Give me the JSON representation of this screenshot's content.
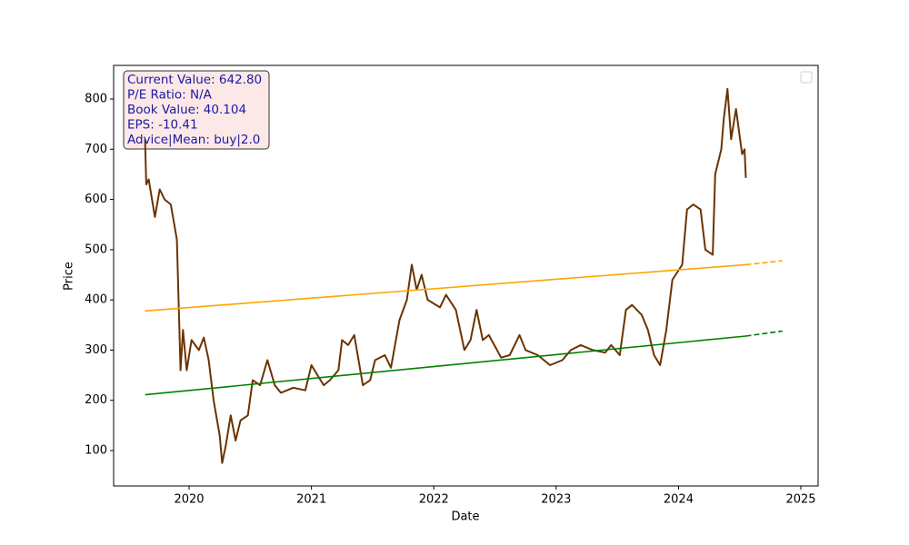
{
  "chart_data": {
    "type": "line",
    "xlabel": "Date",
    "ylabel": "Price",
    "xlim": [
      2019.383,
      2025.141
    ],
    "xticks": [
      2020,
      2021,
      2022,
      2023,
      2024,
      2025
    ],
    "ylim": [
      29.5,
      866.9
    ],
    "yticks": [
      100,
      200,
      300,
      400,
      500,
      600,
      700,
      800
    ],
    "info_box": [
      "Current Value: 642.80",
      "P/E Ratio: N/A",
      "Book Value: 40.104",
      "EPS: -10.41",
      "Advice|Mean: buy|2.0"
    ],
    "series": [
      {
        "color": "#6b3300",
        "dashed": false,
        "x": [
          2019.64,
          2019.65,
          2019.67,
          2019.72,
          2019.76,
          2019.8,
          2019.85,
          2019.9,
          2019.93,
          2019.95,
          2019.98,
          2020.02,
          2020.08,
          2020.12,
          2020.16,
          2020.2,
          2020.25,
          2020.27,
          2020.3,
          2020.34,
          2020.38,
          2020.42,
          2020.48,
          2020.52,
          2020.58,
          2020.64,
          2020.7,
          2020.75,
          2020.85,
          2020.95,
          2021.0,
          2021.1,
          2021.15,
          2021.22,
          2021.25,
          2021.3,
          2021.35,
          2021.42,
          2021.48,
          2021.52,
          2021.6,
          2021.65,
          2021.72,
          2021.78,
          2021.82,
          2021.86,
          2021.9,
          2021.95,
          2022.05,
          2022.1,
          2022.18,
          2022.25,
          2022.3,
          2022.35,
          2022.4,
          2022.45,
          2022.55,
          2022.62,
          2022.7,
          2022.75,
          2022.85,
          2022.95,
          2023.05,
          2023.12,
          2023.2,
          2023.3,
          2023.4,
          2023.45,
          2023.52,
          2023.57,
          2023.62,
          2023.7,
          2023.75,
          2023.8,
          2023.85,
          2023.9,
          2023.95,
          2024.03,
          2024.07,
          2024.12,
          2024.18,
          2024.22,
          2024.28,
          2024.3,
          2024.35,
          2024.37,
          2024.4,
          2024.43,
          2024.47,
          2024.52,
          2024.54,
          2024.55
        ],
        "values": [
          720,
          630,
          640,
          565,
          620,
          600,
          590,
          520,
          260,
          340,
          260,
          320,
          300,
          325,
          280,
          200,
          130,
          75,
          110,
          170,
          120,
          160,
          170,
          240,
          230,
          280,
          230,
          215,
          225,
          220,
          270,
          230,
          240,
          260,
          320,
          310,
          330,
          230,
          240,
          280,
          290,
          265,
          360,
          400,
          470,
          420,
          450,
          400,
          385,
          410,
          380,
          300,
          320,
          380,
          320,
          330,
          285,
          290,
          330,
          300,
          290,
          270,
          280,
          300,
          310,
          300,
          295,
          310,
          290,
          380,
          390,
          370,
          340,
          290,
          270,
          340,
          440,
          470,
          580,
          590,
          580,
          500,
          490,
          650,
          700,
          760,
          820,
          720,
          780,
          690,
          700,
          643
        ]
      },
      {
        "color": "#ffa500",
        "dashed": false,
        "x": [
          2019.64,
          2024.55
        ],
        "values": [
          378,
          470
        ]
      },
      {
        "color": "#ffa500",
        "dashed": true,
        "x": [
          2024.55,
          2024.85
        ],
        "values": [
          470,
          478
        ]
      },
      {
        "color": "#008000",
        "dashed": false,
        "x": [
          2019.64,
          2024.55
        ],
        "values": [
          211,
          328
        ]
      },
      {
        "color": "#008000",
        "dashed": true,
        "x": [
          2024.55,
          2024.85
        ],
        "values": [
          328,
          338
        ]
      }
    ]
  }
}
